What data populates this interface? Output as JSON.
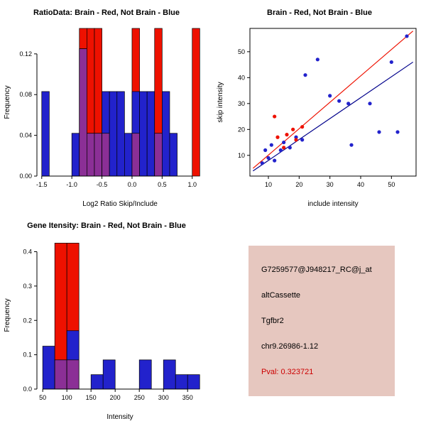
{
  "colors": {
    "red": "#ee1100",
    "blue": "#2222cc",
    "purple": "#8b2f96",
    "navy": "#00008b",
    "panel_bg": "#e6c7bf",
    "pval_red": "#cc0000",
    "axis": "#000000"
  },
  "chart_data": [
    {
      "type": "bar",
      "id": "ratio-histogram",
      "title": "RatioData: Brain - Red, Not Brain - Blue",
      "xlabel": "Log2 Ratio Skip/Include",
      "ylabel": "Frequency",
      "xlim": [
        -1.58,
        1.18
      ],
      "ylim": [
        0,
        0.145
      ],
      "xticks": [
        -1.5,
        -1.0,
        -0.5,
        0.0,
        0.5,
        1.0
      ],
      "xtick_labels": [
        "-1.5",
        "-1.0",
        "-0.5",
        "0.0",
        "0.5",
        "1.0"
      ],
      "yticks": [
        0,
        0.04,
        0.08,
        0.12
      ],
      "ytick_labels": [
        "0.00",
        "0.04",
        "0.08",
        "0.12"
      ],
      "bin_width": 0.125,
      "bars": [
        {
          "x": -1.5,
          "blue": 0.083
        },
        {
          "x": -1.0,
          "blue": 0.042
        },
        {
          "x": -0.875,
          "red": 0.145,
          "blue": 0.125,
          "ov": 0.125
        },
        {
          "x": -0.75,
          "red": 0.145,
          "blue": 0.042,
          "ov": 0.042
        },
        {
          "x": -0.625,
          "red": 0.145,
          "blue": 0.042,
          "ov": 0.042
        },
        {
          "x": -0.5,
          "red": 0.042,
          "blue": 0.083,
          "ov": 0.042
        },
        {
          "x": -0.375,
          "blue": 0.083
        },
        {
          "x": -0.25,
          "blue": 0.083
        },
        {
          "x": -0.125,
          "blue": 0.042
        },
        {
          "x": 0.0,
          "red": 0.145,
          "blue": 0.083,
          "ov": 0.042
        },
        {
          "x": 0.125,
          "blue": 0.083
        },
        {
          "x": 0.25,
          "blue": 0.083
        },
        {
          "x": 0.375,
          "red": 0.145,
          "blue": 0.042,
          "ov": 0.042
        },
        {
          "x": 0.5,
          "blue": 0.083
        },
        {
          "x": 0.625,
          "blue": 0.042
        },
        {
          "x": 1.0,
          "red": 0.145
        }
      ]
    },
    {
      "type": "scatter",
      "id": "intensity-scatter",
      "title": "Brain - Red, Not Brain - Blue",
      "xlabel": "include intensity",
      "ylabel": "skip intensity",
      "xlim": [
        4,
        58
      ],
      "ylim": [
        2,
        59
      ],
      "xticks": [
        10,
        20,
        30,
        40,
        50
      ],
      "xtick_labels": [
        "10",
        "20",
        "30",
        "40",
        "50"
      ],
      "yticks": [
        10,
        20,
        30,
        40,
        50
      ],
      "ytick_labels": [
        "10",
        "20",
        "30",
        "40",
        "50"
      ],
      "series": [
        {
          "name": "Not Brain",
          "color": "blue",
          "points": [
            [
              8,
              7
            ],
            [
              9,
              12
            ],
            [
              10,
              9
            ],
            [
              11,
              14
            ],
            [
              12,
              8
            ],
            [
              14,
              12
            ],
            [
              15,
              15
            ],
            [
              17,
              13
            ],
            [
              19,
              17
            ],
            [
              21,
              16
            ],
            [
              22,
              41
            ],
            [
              26,
              47
            ],
            [
              30,
              33
            ],
            [
              33,
              31
            ],
            [
              36,
              30
            ],
            [
              37,
              14
            ],
            [
              43,
              30
            ],
            [
              46,
              19
            ],
            [
              50,
              46
            ],
            [
              52,
              19
            ],
            [
              55,
              56
            ]
          ]
        },
        {
          "name": "Brain",
          "color": "red",
          "points": [
            [
              12,
              25
            ],
            [
              13,
              17
            ],
            [
              15,
              13
            ],
            [
              16,
              18
            ],
            [
              18,
              20
            ],
            [
              19,
              16
            ],
            [
              21,
              21
            ]
          ]
        }
      ],
      "lines": [
        {
          "color": "red",
          "x1": 5,
          "y1": 5,
          "x2": 57,
          "y2": 58
        },
        {
          "color": "navy",
          "x1": 5,
          "y1": 4,
          "x2": 57,
          "y2": 46
        }
      ]
    },
    {
      "type": "bar",
      "id": "gene-intensity-histogram",
      "title": "Gene Itensity: Brain - Red, Not Brain - Blue",
      "xlabel": "Intensity",
      "ylabel": "Frequency",
      "xlim": [
        38,
        382
      ],
      "ylim": [
        0,
        0.43
      ],
      "xticks": [
        50,
        100,
        150,
        200,
        250,
        300,
        350
      ],
      "xtick_labels": [
        "50",
        "100",
        "150",
        "200",
        "250",
        "300",
        "350"
      ],
      "yticks": [
        0,
        0.1,
        0.2,
        0.3,
        0.4
      ],
      "ytick_labels": [
        "0.0",
        "0.1",
        "0.2",
        "0.3",
        "0.4"
      ],
      "bin_width": 25,
      "bars": [
        {
          "x": 50,
          "blue": 0.125
        },
        {
          "x": 75,
          "red": 0.425,
          "blue": 0.085,
          "ov": 0.085
        },
        {
          "x": 100,
          "red": 0.425,
          "blue": 0.17,
          "ov": 0.085
        },
        {
          "x": 150,
          "blue": 0.042
        },
        {
          "x": 175,
          "blue": 0.085
        },
        {
          "x": 250,
          "blue": 0.085
        },
        {
          "x": 300,
          "blue": 0.085
        },
        {
          "x": 325,
          "blue": 0.042
        },
        {
          "x": 350,
          "blue": 0.042
        }
      ]
    }
  ],
  "info_panel": {
    "lines": [
      {
        "text": "G7259577@J948217_RC@j_at",
        "color": "black"
      },
      {
        "text": "altCassette",
        "color": "black"
      },
      {
        "text": "Tgfbr2",
        "color": "black"
      },
      {
        "text": "chr9.26986-1.12",
        "color": "black"
      },
      {
        "text": "Pval: 0.323721",
        "color": "red"
      }
    ]
  }
}
